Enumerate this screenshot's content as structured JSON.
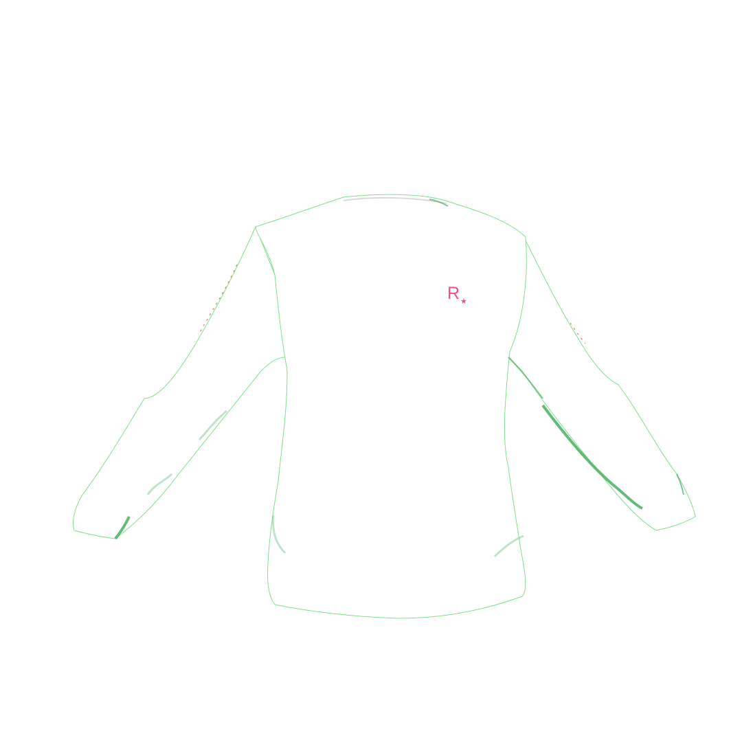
{
  "scene": {
    "background_color": "#ffffff",
    "subject": "long-sleeve-shirt"
  },
  "shirt": {
    "fabric_color": "#ffffff",
    "outline_color": "#7fe08f",
    "shadow_color": "#4caf63",
    "accent_color": "#e8735a"
  },
  "logo": {
    "text": "R",
    "star_glyph": "★",
    "color": "#f0507a"
  }
}
